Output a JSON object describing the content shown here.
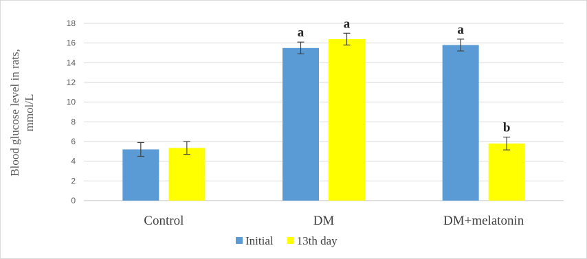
{
  "chart_data": {
    "type": "bar",
    "title": "",
    "xlabel": "",
    "ylabel_lines": [
      "Blood glucose  level  in  rats,",
      "mmol/L"
    ],
    "categories": [
      "Control",
      "DM",
      "DM+melatonin"
    ],
    "ylim": [
      0,
      18
    ],
    "yticks": [
      0,
      2,
      4,
      6,
      8,
      10,
      12,
      14,
      16,
      18
    ],
    "grid": true,
    "legend_position": "bottom",
    "series": [
      {
        "name": "Initial",
        "color": "#5b9bd5",
        "values": [
          5.2,
          15.5,
          15.8
        ],
        "errors": [
          0.7,
          0.6,
          0.6
        ],
        "annotations": [
          "",
          "a",
          "a"
        ]
      },
      {
        "name": "13th day",
        "color": "#ffff00",
        "values": [
          5.35,
          16.4,
          5.8
        ],
        "errors": [
          0.65,
          0.6,
          0.65
        ],
        "annotations": [
          "",
          "a",
          "b"
        ]
      }
    ]
  }
}
